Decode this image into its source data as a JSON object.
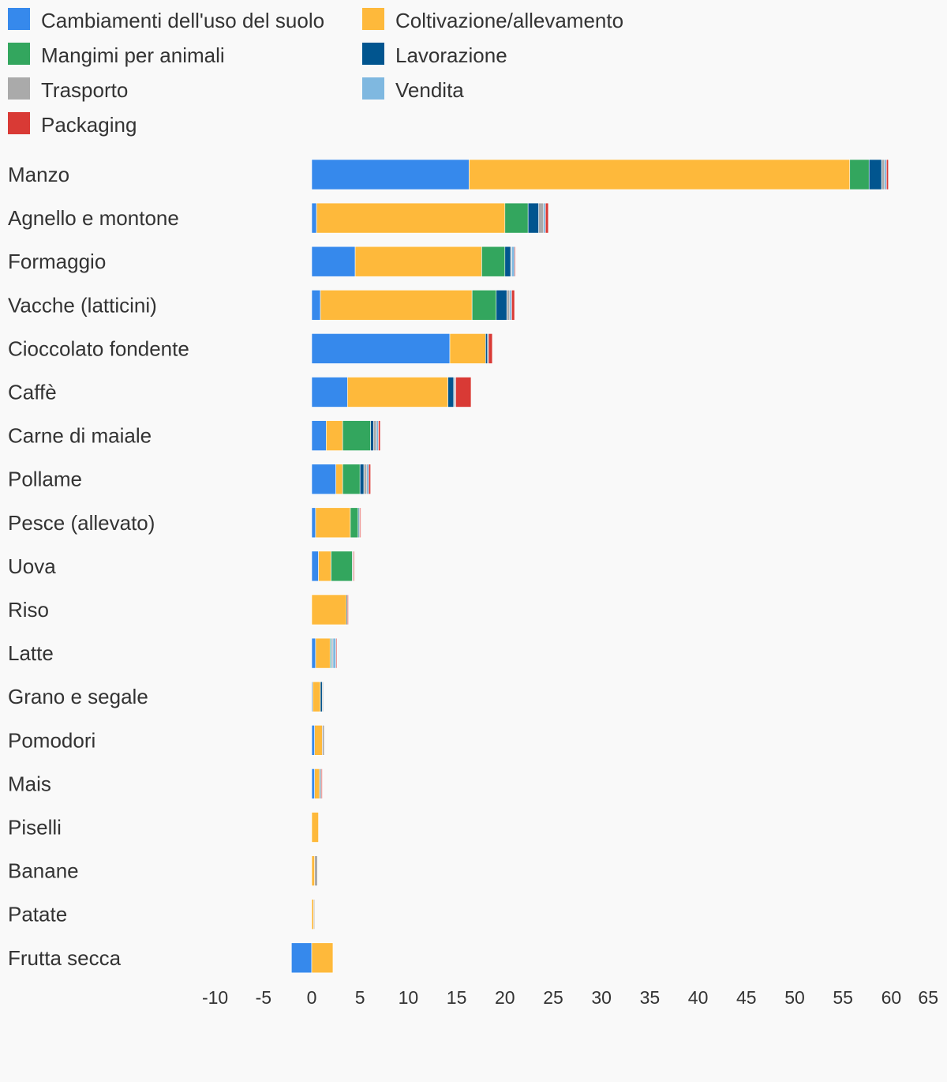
{
  "chart_data": {
    "type": "bar",
    "orientation": "horizontal",
    "stacked": true,
    "legend_position": "top",
    "grid": false,
    "xlim": [
      -10,
      65
    ],
    "x_ticks": [
      "-10",
      "-5",
      "0",
      "5",
      "10",
      "15",
      "20",
      "25",
      "30",
      "35",
      "40",
      "45",
      "50",
      "55",
      "60",
      "65"
    ],
    "categories": [
      "Manzo",
      "Agnello e montone",
      "Formaggio",
      "Vacche (latticini)",
      "Cioccolato fondente",
      "Caffè",
      "Carne di maiale",
      "Pollame",
      "Pesce (allevato)",
      "Uova",
      "Riso",
      "Latte",
      "Grano e segale",
      "Pomodori",
      "Mais",
      "Piselli",
      "Banane",
      "Patate",
      "Frutta secca"
    ],
    "series": [
      {
        "name": "Cambiamenti dell'uso del suolo",
        "color": "#3689ec",
        "values": [
          16.3,
          0.5,
          4.5,
          0.9,
          14.3,
          3.7,
          1.5,
          2.5,
          0.4,
          0.7,
          0,
          0.4,
          0.1,
          0.3,
          0.3,
          0,
          0,
          0,
          -2.1
        ]
      },
      {
        "name": "Coltivazione/allevamento",
        "color": "#feb93b",
        "values": [
          39.4,
          19.5,
          13.1,
          15.7,
          3.7,
          10.4,
          1.7,
          0.7,
          3.6,
          1.3,
          3.6,
          1.5,
          0.8,
          0.8,
          0.5,
          0.7,
          0.3,
          0.2,
          2.2
        ]
      },
      {
        "name": "Mangimi per animali",
        "color": "#33a65e",
        "values": [
          2.0,
          2.4,
          2.4,
          2.5,
          0,
          0,
          2.9,
          1.8,
          0.8,
          2.2,
          0,
          0.1,
          0,
          0,
          0,
          0,
          0,
          0,
          0
        ]
      },
      {
        "name": "Lavorazione",
        "color": "#01558f",
        "values": [
          1.3,
          1.1,
          0.6,
          1.1,
          0.2,
          0.6,
          0.3,
          0.4,
          0.1,
          0,
          0.1,
          0.1,
          0.2,
          0,
          0.1,
          0,
          0,
          0,
          0
        ]
      },
      {
        "name": "Trasporto",
        "color": "#aaaaaa",
        "values": [
          0.3,
          0.5,
          0.1,
          0.3,
          0.1,
          0.1,
          0.3,
          0.3,
          0.1,
          0.1,
          0,
          0.1,
          0.1,
          0.2,
          0.1,
          0,
          0.3,
          0.1,
          0
        ]
      },
      {
        "name": "Vendita",
        "color": "#7fb8e0",
        "values": [
          0.2,
          0.2,
          0.3,
          0.2,
          0,
          0.1,
          0.2,
          0.2,
          0,
          0,
          0,
          0.3,
          0,
          0,
          0,
          0,
          0,
          0,
          0
        ]
      },
      {
        "name": "Packaging",
        "color": "#d93a35",
        "values": [
          0.2,
          0.3,
          0.1,
          0.3,
          0.4,
          1.6,
          0.2,
          0.2,
          0.1,
          0.1,
          0.1,
          0.1,
          0,
          0,
          0.1,
          0,
          0,
          0,
          0
        ]
      }
    ]
  }
}
